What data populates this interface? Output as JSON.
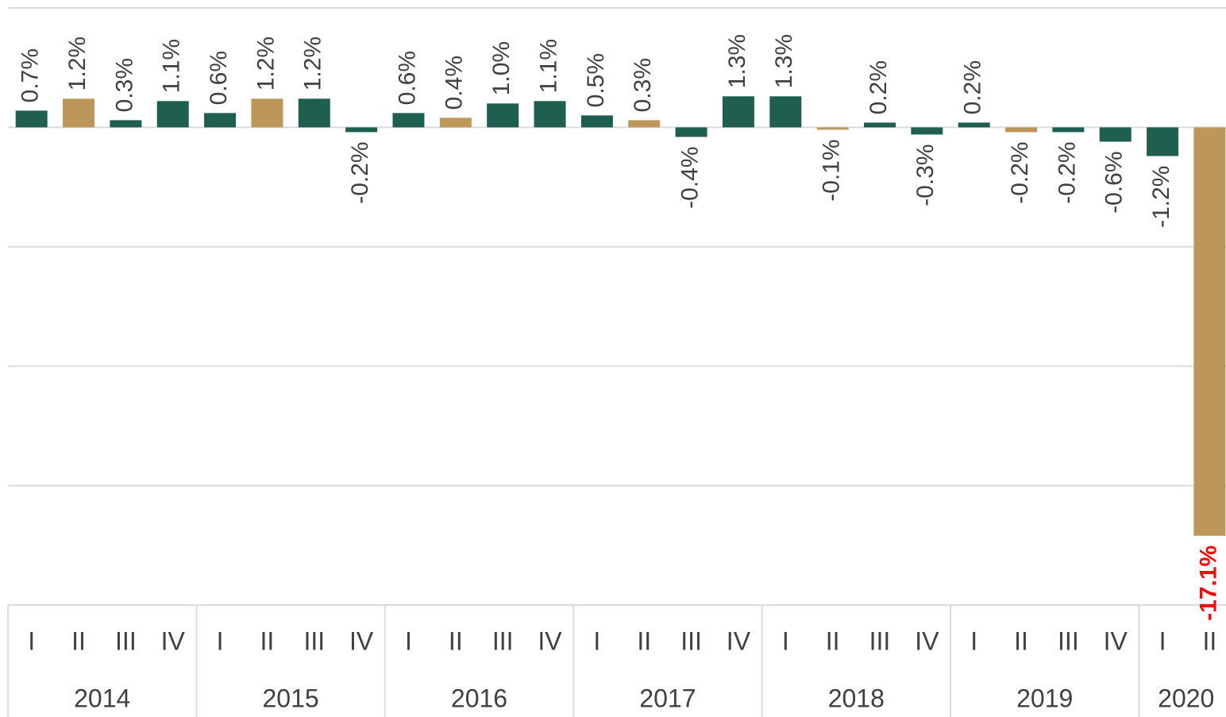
{
  "chart_data": {
    "type": "bar",
    "categories": [
      "I",
      "II",
      "III",
      "IV",
      "I",
      "II",
      "III",
      "IV",
      "I",
      "II",
      "III",
      "IV",
      "I",
      "II",
      "III",
      "IV",
      "I",
      "II",
      "III",
      "IV",
      "I",
      "II",
      "III",
      "IV",
      "I",
      "II"
    ],
    "years": [
      "2014",
      "2015",
      "2016",
      "2017",
      "2018",
      "2019",
      "2020"
    ],
    "values": [
      0.7,
      1.2,
      0.3,
      1.1,
      0.6,
      1.2,
      1.2,
      -0.2,
      0.6,
      0.4,
      1.0,
      1.1,
      0.5,
      0.3,
      -0.4,
      1.3,
      1.3,
      -0.1,
      0.2,
      -0.3,
      0.2,
      -0.2,
      -0.2,
      -0.6,
      -1.2,
      -17.1
    ],
    "value_labels": [
      "0.7%",
      "1.2%",
      "0.3%",
      "1.1%",
      "0.6%",
      "1.2%",
      "1.2%",
      "-0.2%",
      "0.6%",
      "0.4%",
      "1.0%",
      "1.1%",
      "0.5%",
      "0.3%",
      "-0.4%",
      "1.3%",
      "1.3%",
      "-0.1%",
      "0.2%",
      "-0.3%",
      "0.2%",
      "-0.2%",
      "-0.2%",
      "-0.6%",
      "-1.2%",
      "-17.1%"
    ],
    "colors": [
      "#1f5f4f",
      "#bd965a",
      "#1f5f4f",
      "#1f5f4f",
      "#1f5f4f",
      "#bd965a",
      "#1f5f4f",
      "#1f5f4f",
      "#1f5f4f",
      "#bd965a",
      "#1f5f4f",
      "#1f5f4f",
      "#1f5f4f",
      "#bd965a",
      "#1f5f4f",
      "#1f5f4f",
      "#1f5f4f",
      "#bd965a",
      "#1f5f4f",
      "#1f5f4f",
      "#1f5f4f",
      "#bd965a",
      "#1f5f4f",
      "#1f5f4f",
      "#1f5f4f",
      "#bd965a"
    ],
    "value_label_colors": [
      "#404040",
      "#404040",
      "#404040",
      "#404040",
      "#404040",
      "#404040",
      "#404040",
      "#404040",
      "#404040",
      "#404040",
      "#404040",
      "#404040",
      "#404040",
      "#404040",
      "#404040",
      "#404040",
      "#404040",
      "#404040",
      "#404040",
      "#404040",
      "#404040",
      "#404040",
      "#404040",
      "#404040",
      "#404040",
      "#ff0000"
    ],
    "ylim": [
      -20,
      5
    ],
    "yticks": [
      -20,
      -15,
      -10,
      -5,
      0,
      5
    ],
    "grid": true
  }
}
